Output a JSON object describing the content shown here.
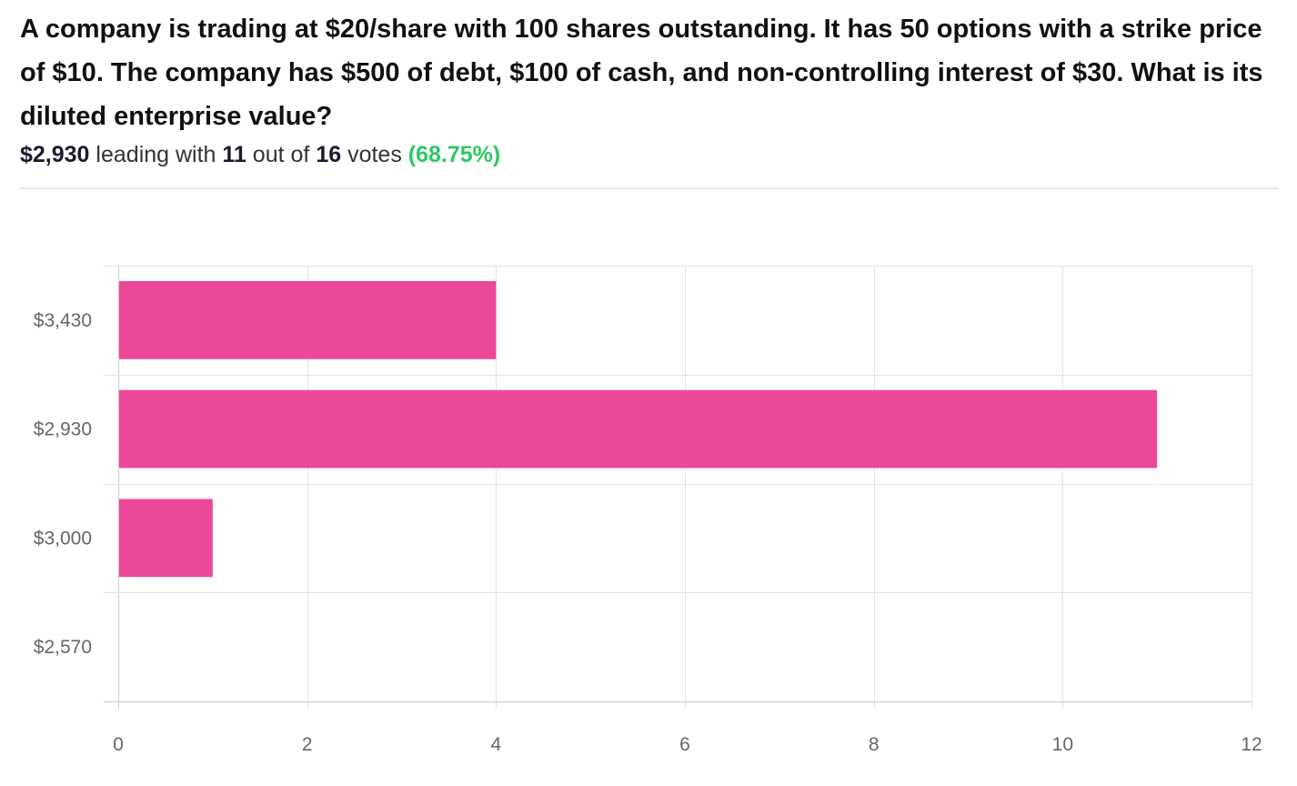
{
  "poll": {
    "question": "A company is trading at $20/share with 100 shares outstanding. It has 50 options with a strike price of $10. The company has $500 of debt, $100 of cash, and non-controlling interest of $30. What is its diluted enterprise value?",
    "leader": "$2,930",
    "leading_text": "leading with",
    "leader_votes": "11",
    "out_of_text": "out of",
    "total_votes": "16",
    "votes_text": "votes",
    "percent": "(68.75%)"
  },
  "colors": {
    "bar": "#ec4899",
    "grid": "#e3e3e3",
    "axis": "#cccccc",
    "tick_text": "#666666",
    "percent": "#2ec866"
  },
  "chart_data": {
    "type": "bar",
    "orientation": "horizontal",
    "categories": [
      "$3,430",
      "$2,930",
      "$3,000",
      "$2,570"
    ],
    "values": [
      4,
      11,
      1,
      0
    ],
    "xlim": [
      0,
      12
    ],
    "xticks": [
      0,
      2,
      4,
      6,
      8,
      10,
      12
    ],
    "grid": true,
    "legend": "none"
  }
}
